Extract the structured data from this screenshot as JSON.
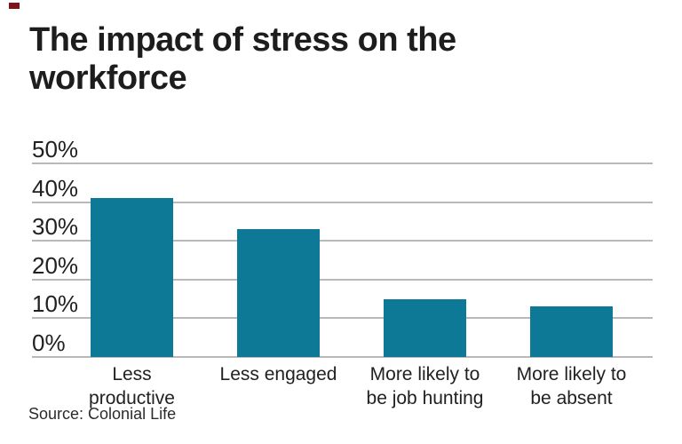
{
  "page": {
    "background": "#ffffff",
    "corner_mark_color": "#7b151b"
  },
  "header": {
    "title": "The impact of stress on the workforce",
    "title_lines": [
      "The impact of stress on the",
      "workforce"
    ]
  },
  "chart_data": {
    "type": "bar",
    "title": "The impact of stress on the workforce",
    "categories": [
      "Less productive",
      "Less engaged",
      "More likely to be job hunting",
      "More likely to be absent"
    ],
    "category_lines": [
      [
        "Less",
        "productive"
      ],
      [
        "Less engaged"
      ],
      [
        "More likely to",
        "be job hunting"
      ],
      [
        "More likely to",
        "be absent"
      ]
    ],
    "values": [
      41,
      33,
      15,
      13
    ],
    "unit": "%",
    "xlabel": "",
    "ylabel": "",
    "ylim": [
      0,
      50
    ],
    "y_tick_step": 10,
    "y_tick_labels": [
      "50%",
      "40%",
      "30%",
      "20%",
      "10%",
      "0%"
    ],
    "grid": "horizontal",
    "legend": "none",
    "bar_color": "#0d7997",
    "gridline_color": "#b9b9b9"
  },
  "footer": {
    "source": "Source: Colonial Life"
  }
}
